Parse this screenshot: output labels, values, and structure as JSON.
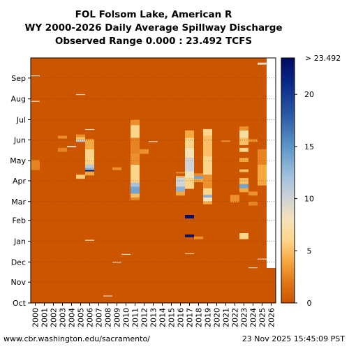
{
  "chart_data": {
    "type": "heatmap",
    "title": [
      "FOL Folsom Lake, American R",
      "WY 2000-2026 Daily Average Spillway Discharge",
      "Observed Range 0.000 : 23.492 TCFS"
    ],
    "x_categories": [
      "2000",
      "2001",
      "2002",
      "2003",
      "2004",
      "2005",
      "2006",
      "2007",
      "2008",
      "2009",
      "2010",
      "2011",
      "2012",
      "2013",
      "2014",
      "2015",
      "2016",
      "2017",
      "2018",
      "2019",
      "2020",
      "2021",
      "2022",
      "2023",
      "2024",
      "2025",
      "2026"
    ],
    "y_month_labels": [
      "Oct",
      "Nov",
      "Dec",
      "Jan",
      "Feb",
      "Mar",
      "Apr",
      "May",
      "Jun",
      "Jul",
      "Aug",
      "Sep"
    ],
    "colorbar": {
      "ticks": [
        0,
        5,
        10,
        15,
        20
      ],
      "max_label": "> 23.492",
      "range": [
        0,
        23.492
      ],
      "stops": [
        {
          "value": 0,
          "color": "#cc5500"
        },
        {
          "value": 2,
          "color": "#e07818"
        },
        {
          "value": 4,
          "color": "#f6a840"
        },
        {
          "value": 6,
          "color": "#fdd58a"
        },
        {
          "value": 8,
          "color": "#f5e3b8"
        },
        {
          "value": 10,
          "color": "#d0d3d6"
        },
        {
          "value": 12,
          "color": "#a4c2de"
        },
        {
          "value": 15,
          "color": "#5d95c8"
        },
        {
          "value": 18,
          "color": "#2b5aa6"
        },
        {
          "value": 21,
          "color": "#0b2a8a"
        },
        {
          "value": 23.492,
          "color": "#000a60"
        }
      ]
    },
    "colors": {
      "zero": "#cc5500",
      "missing": "#ffffff",
      "grid": "#8a3a00"
    },
    "events": [
      {
        "year": "2000",
        "start_day": 0,
        "end_day": 197,
        "value": 0
      },
      {
        "year": "2000",
        "start_day": 198,
        "end_day": 212,
        "value": 2.5
      },
      {
        "year": "2000",
        "start_day": 338,
        "end_day": 338,
        "value": 9
      },
      {
        "year": "2000",
        "start_day": 300,
        "end_day": 300,
        "value": 9
      },
      {
        "year": "2003",
        "start_day": 225,
        "end_day": 230,
        "value": 2.5
      },
      {
        "year": "2003",
        "start_day": 245,
        "end_day": 248,
        "value": 3
      },
      {
        "year": "2004",
        "start_day": 232,
        "end_day": 233,
        "value": 9
      },
      {
        "year": "2005",
        "start_day": 185,
        "end_day": 190,
        "value": 5.5
      },
      {
        "year": "2005",
        "start_day": 240,
        "end_day": 242,
        "value": 11
      },
      {
        "year": "2005",
        "start_day": 243,
        "end_day": 246,
        "value": 5
      },
      {
        "year": "2005",
        "start_day": 247,
        "end_day": 250,
        "value": 3
      },
      {
        "year": "2005",
        "start_day": 310,
        "end_day": 310,
        "value": 9
      },
      {
        "year": "2006",
        "start_day": 93,
        "end_day": 93,
        "value": 8
      },
      {
        "year": "2006",
        "start_day": 190,
        "end_day": 195,
        "value": 4
      },
      {
        "year": "2006",
        "start_day": 196,
        "end_day": 197,
        "value": 23
      },
      {
        "year": "2006",
        "start_day": 198,
        "end_day": 200,
        "value": 13
      },
      {
        "year": "2006",
        "start_day": 201,
        "end_day": 205,
        "value": 11
      },
      {
        "year": "2006",
        "start_day": 206,
        "end_day": 228,
        "value": 6
      },
      {
        "year": "2006",
        "start_day": 229,
        "end_day": 243,
        "value": 4
      },
      {
        "year": "2006",
        "start_day": 258,
        "end_day": 258,
        "value": 9
      },
      {
        "year": "2008",
        "start_day": 10,
        "end_day": 10,
        "value": 9
      },
      {
        "year": "2009",
        "start_day": 60,
        "end_day": 60,
        "value": 9
      },
      {
        "year": "2009",
        "start_day": 198,
        "end_day": 201,
        "value": 3
      },
      {
        "year": "2010",
        "start_day": 72,
        "end_day": 72,
        "value": 9
      },
      {
        "year": "2011",
        "start_day": 153,
        "end_day": 156,
        "value": 2.5
      },
      {
        "year": "2011",
        "start_day": 157,
        "end_day": 162,
        "value": 5
      },
      {
        "year": "2011",
        "start_day": 163,
        "end_day": 172,
        "value": 14
      },
      {
        "year": "2011",
        "start_day": 173,
        "end_day": 178,
        "value": 12
      },
      {
        "year": "2011",
        "start_day": 179,
        "end_day": 205,
        "value": 6
      },
      {
        "year": "2011",
        "start_day": 206,
        "end_day": 222,
        "value": 3
      },
      {
        "year": "2011",
        "start_day": 223,
        "end_day": 245,
        "value": 2.5
      },
      {
        "year": "2011",
        "start_day": 246,
        "end_day": 264,
        "value": 6
      },
      {
        "year": "2011",
        "start_day": 265,
        "end_day": 272,
        "value": 3
      },
      {
        "year": "2012",
        "start_day": 222,
        "end_day": 228,
        "value": 3
      },
      {
        "year": "2013",
        "start_day": 240,
        "end_day": 240,
        "value": 9
      },
      {
        "year": "2016",
        "start_day": 160,
        "end_day": 165,
        "value": 4
      },
      {
        "year": "2016",
        "start_day": 166,
        "end_day": 172,
        "value": 13
      },
      {
        "year": "2016",
        "start_day": 173,
        "end_day": 186,
        "value": 10
      },
      {
        "year": "2016",
        "start_day": 187,
        "end_day": 188,
        "value": 5
      },
      {
        "year": "2016",
        "start_day": 193,
        "end_day": 194,
        "value": 3
      },
      {
        "year": "2017",
        "start_day": 73,
        "end_day": 73,
        "value": 6
      },
      {
        "year": "2017",
        "start_day": 98,
        "end_day": 101,
        "value": 23
      },
      {
        "year": "2017",
        "start_day": 126,
        "end_day": 130,
        "value": 23
      },
      {
        "year": "2017",
        "start_day": 170,
        "end_day": 185,
        "value": 6
      },
      {
        "year": "2017",
        "start_day": 186,
        "end_day": 195,
        "value": 8
      },
      {
        "year": "2017",
        "start_day": 196,
        "end_day": 215,
        "value": 10
      },
      {
        "year": "2017",
        "start_day": 216,
        "end_day": 230,
        "value": 8
      },
      {
        "year": "2017",
        "start_day": 231,
        "end_day": 245,
        "value": 6
      },
      {
        "year": "2017",
        "start_day": 246,
        "end_day": 256,
        "value": 4
      },
      {
        "year": "2018",
        "start_day": 95,
        "end_day": 98,
        "value": 3
      },
      {
        "year": "2018",
        "start_day": 180,
        "end_day": 184,
        "value": 4
      },
      {
        "year": "2018",
        "start_day": 185,
        "end_day": 188,
        "value": 14
      },
      {
        "year": "2018",
        "start_day": 189,
        "end_day": 192,
        "value": 3
      },
      {
        "year": "2019",
        "start_day": 147,
        "end_day": 150,
        "value": 4
      },
      {
        "year": "2019",
        "start_day": 151,
        "end_day": 156,
        "value": 8
      },
      {
        "year": "2019",
        "start_day": 157,
        "end_day": 160,
        "value": 13
      },
      {
        "year": "2019",
        "start_day": 161,
        "end_day": 170,
        "value": 6
      },
      {
        "year": "2019",
        "start_day": 171,
        "end_day": 190,
        "value": 3
      },
      {
        "year": "2019",
        "start_day": 191,
        "end_day": 218,
        "value": 6
      },
      {
        "year": "2019",
        "start_day": 219,
        "end_day": 248,
        "value": 5
      },
      {
        "year": "2019",
        "start_day": 249,
        "end_day": 258,
        "value": 6
      },
      {
        "year": "2021",
        "start_day": 240,
        "end_day": 241,
        "value": 3
      },
      {
        "year": "2022",
        "start_day": 150,
        "end_day": 160,
        "value": 3
      },
      {
        "year": "2023",
        "start_day": 95,
        "end_day": 103,
        "value": 6
      },
      {
        "year": "2023",
        "start_day": 165,
        "end_day": 170,
        "value": 4
      },
      {
        "year": "2023",
        "start_day": 171,
        "end_day": 176,
        "value": 14
      },
      {
        "year": "2023",
        "start_day": 177,
        "end_day": 185,
        "value": 5
      },
      {
        "year": "2023",
        "start_day": 195,
        "end_day": 198,
        "value": 5
      },
      {
        "year": "2023",
        "start_day": 210,
        "end_day": 215,
        "value": 4
      },
      {
        "year": "2023",
        "start_day": 225,
        "end_day": 230,
        "value": 6
      },
      {
        "year": "2023",
        "start_day": 235,
        "end_day": 245,
        "value": 5
      },
      {
        "year": "2023",
        "start_day": 246,
        "end_day": 256,
        "value": 7
      },
      {
        "year": "2023",
        "start_day": 257,
        "end_day": 262,
        "value": 3
      },
      {
        "year": "2024",
        "start_day": 52,
        "end_day": 52,
        "value": 9
      },
      {
        "year": "2024",
        "start_day": 145,
        "end_day": 150,
        "value": 2.5
      },
      {
        "year": "2024",
        "start_day": 160,
        "end_day": 165,
        "value": 3
      },
      {
        "year": "2024",
        "start_day": 240,
        "end_day": 243,
        "value": 3
      },
      {
        "year": "2025",
        "start_day": 65,
        "end_day": 65,
        "value": 9
      },
      {
        "year": "2025",
        "start_day": 175,
        "end_day": 205,
        "value": 4
      },
      {
        "year": "2025",
        "start_day": 206,
        "end_day": 228,
        "value": 2.5
      },
      {
        "year": "2025",
        "start_day": 355,
        "end_day": 357,
        "value": 9
      }
    ],
    "missing_cells": [
      {
        "year": "2026",
        "start_day": 52,
        "end_day": 365
      }
    ]
  },
  "footer": {
    "url": "www.cbr.washington.edu/sacramento/",
    "timestamp": "23 Nov 2025 15:45:09 PST"
  }
}
